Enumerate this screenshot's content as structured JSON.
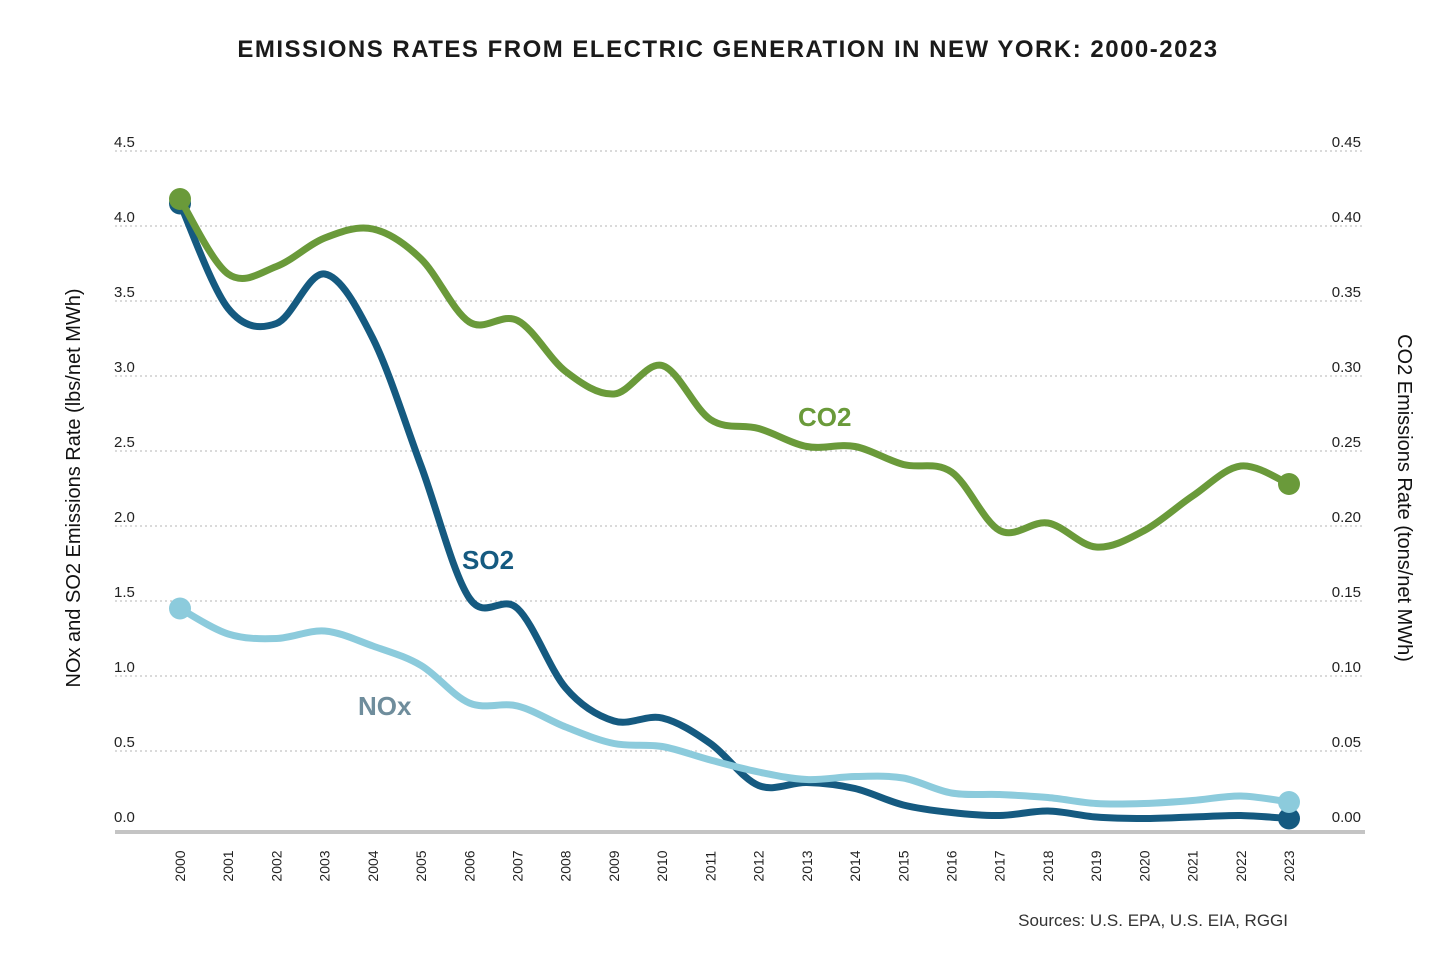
{
  "chart_data": {
    "type": "line",
    "title": "EMISSIONS RATES FROM ELECTRIC GENERATION IN NEW YORK: 2000-2023",
    "ylabel_left": "NOx and SO2 Emissions Rate (lbs/net MWh)",
    "ylabel_right": "CO2 Emissions Rate (tons/net MWh)",
    "source": "Sources: U.S. EPA, U.S. EIA, RGGI",
    "y_left": {
      "min": 0,
      "max": 4.5,
      "ticks": [
        0.0,
        0.5,
        1.0,
        1.5,
        2.0,
        2.5,
        3.0,
        3.5,
        4.0,
        4.5
      ],
      "tick_labels": [
        "0.0",
        "0.5",
        "1.0",
        "1.5",
        "2.0",
        "2.5",
        "3.0",
        "3.5",
        "4.0",
        "4.5"
      ]
    },
    "y_right": {
      "min": 0,
      "max": 0.45,
      "ticks": [
        0.0,
        0.05,
        0.1,
        0.15,
        0.2,
        0.25,
        0.3,
        0.35,
        0.4,
        0.45
      ],
      "tick_labels": [
        "0.00",
        "0.05",
        "0.10",
        "0.15",
        "0.20",
        "0.25",
        "0.30",
        "0.35",
        "0.40",
        "0.45"
      ]
    },
    "grid": true,
    "x": [
      "2000",
      "2001",
      "2002",
      "2003",
      "2004",
      "2005",
      "2006",
      "2007",
      "2008",
      "2009",
      "2010",
      "2011",
      "2012",
      "2013",
      "2014",
      "2015",
      "2016",
      "2017",
      "2018",
      "2019",
      "2020",
      "2021",
      "2022",
      "2023"
    ],
    "series": [
      {
        "name": "CO2",
        "axis": "right",
        "color": "#6a9a3a",
        "label_color": "#6a9a3a",
        "values": [
          0.418,
          0.368,
          0.373,
          0.392,
          0.398,
          0.378,
          0.336,
          0.337,
          0.303,
          0.288,
          0.307,
          0.271,
          0.265,
          0.253,
          0.253,
          0.241,
          0.236,
          0.197,
          0.202,
          0.186,
          0.197,
          0.22,
          0.24,
          0.228
        ]
      },
      {
        "name": "SO2",
        "axis": "left",
        "color": "#155a80",
        "label_color": "#155a80",
        "values": [
          4.15,
          3.45,
          3.35,
          3.68,
          3.25,
          2.4,
          1.52,
          1.45,
          0.92,
          0.7,
          0.72,
          0.55,
          0.27,
          0.29,
          0.25,
          0.14,
          0.09,
          0.07,
          0.1,
          0.06,
          0.05,
          0.06,
          0.07,
          0.05
        ]
      },
      {
        "name": "NOx",
        "axis": "left",
        "color": "#8ccbdc",
        "label_color": "#6f8d9c",
        "values": [
          1.45,
          1.28,
          1.25,
          1.3,
          1.2,
          1.07,
          0.82,
          0.8,
          0.66,
          0.55,
          0.53,
          0.44,
          0.36,
          0.31,
          0.33,
          0.32,
          0.22,
          0.21,
          0.19,
          0.15,
          0.15,
          0.17,
          0.2,
          0.16
        ]
      }
    ],
    "series_labels": [
      {
        "text": "CO2",
        "near": "2013 above CO2 line"
      },
      {
        "text": "SO2",
        "near": "2006 right of SO2 line"
      },
      {
        "text": "NOx",
        "near": "2004 below NOx line"
      }
    ]
  }
}
